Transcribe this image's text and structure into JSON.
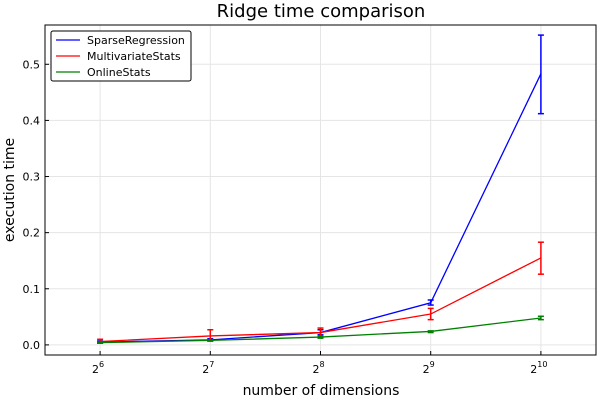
{
  "chart_data": {
    "type": "line",
    "title": "Ridge time comparison",
    "xlabel": "number of dimensions",
    "ylabel": "execution time",
    "x": [
      64,
      128,
      256,
      512,
      1024
    ],
    "x_tick_base": "2",
    "x_tick_exponents": [
      "6",
      "7",
      "8",
      "9",
      "10"
    ],
    "y_ticks": [
      "0.0",
      "0.1",
      "0.2",
      "0.3",
      "0.4",
      "0.5"
    ],
    "xlim_log2": [
      5.5,
      10.5
    ],
    "ylim": [
      -0.018,
      0.57
    ],
    "grid": true,
    "legend_position": "top-left",
    "series": [
      {
        "name": "SparseRegression",
        "color": "#0000ff",
        "values": [
          0.005,
          0.009,
          0.022,
          0.075,
          0.483
        ],
        "err_low": [
          0.004,
          0.007,
          0.018,
          0.071,
          0.412
        ],
        "err_high": [
          0.007,
          0.011,
          0.027,
          0.08,
          0.552
        ]
      },
      {
        "name": "MultivariateStats",
        "color": "#ff0000",
        "values": [
          0.006,
          0.016,
          0.022,
          0.055,
          0.155
        ],
        "err_low": [
          0.003,
          0.007,
          0.016,
          0.045,
          0.126
        ],
        "err_high": [
          0.01,
          0.027,
          0.03,
          0.065,
          0.183
        ]
      },
      {
        "name": "OnlineStats",
        "color": "#008000",
        "values": [
          0.004,
          0.008,
          0.014,
          0.024,
          0.048
        ],
        "err_low": [
          0.003,
          0.007,
          0.012,
          0.022,
          0.045
        ],
        "err_high": [
          0.005,
          0.009,
          0.016,
          0.025,
          0.051
        ]
      }
    ]
  }
}
